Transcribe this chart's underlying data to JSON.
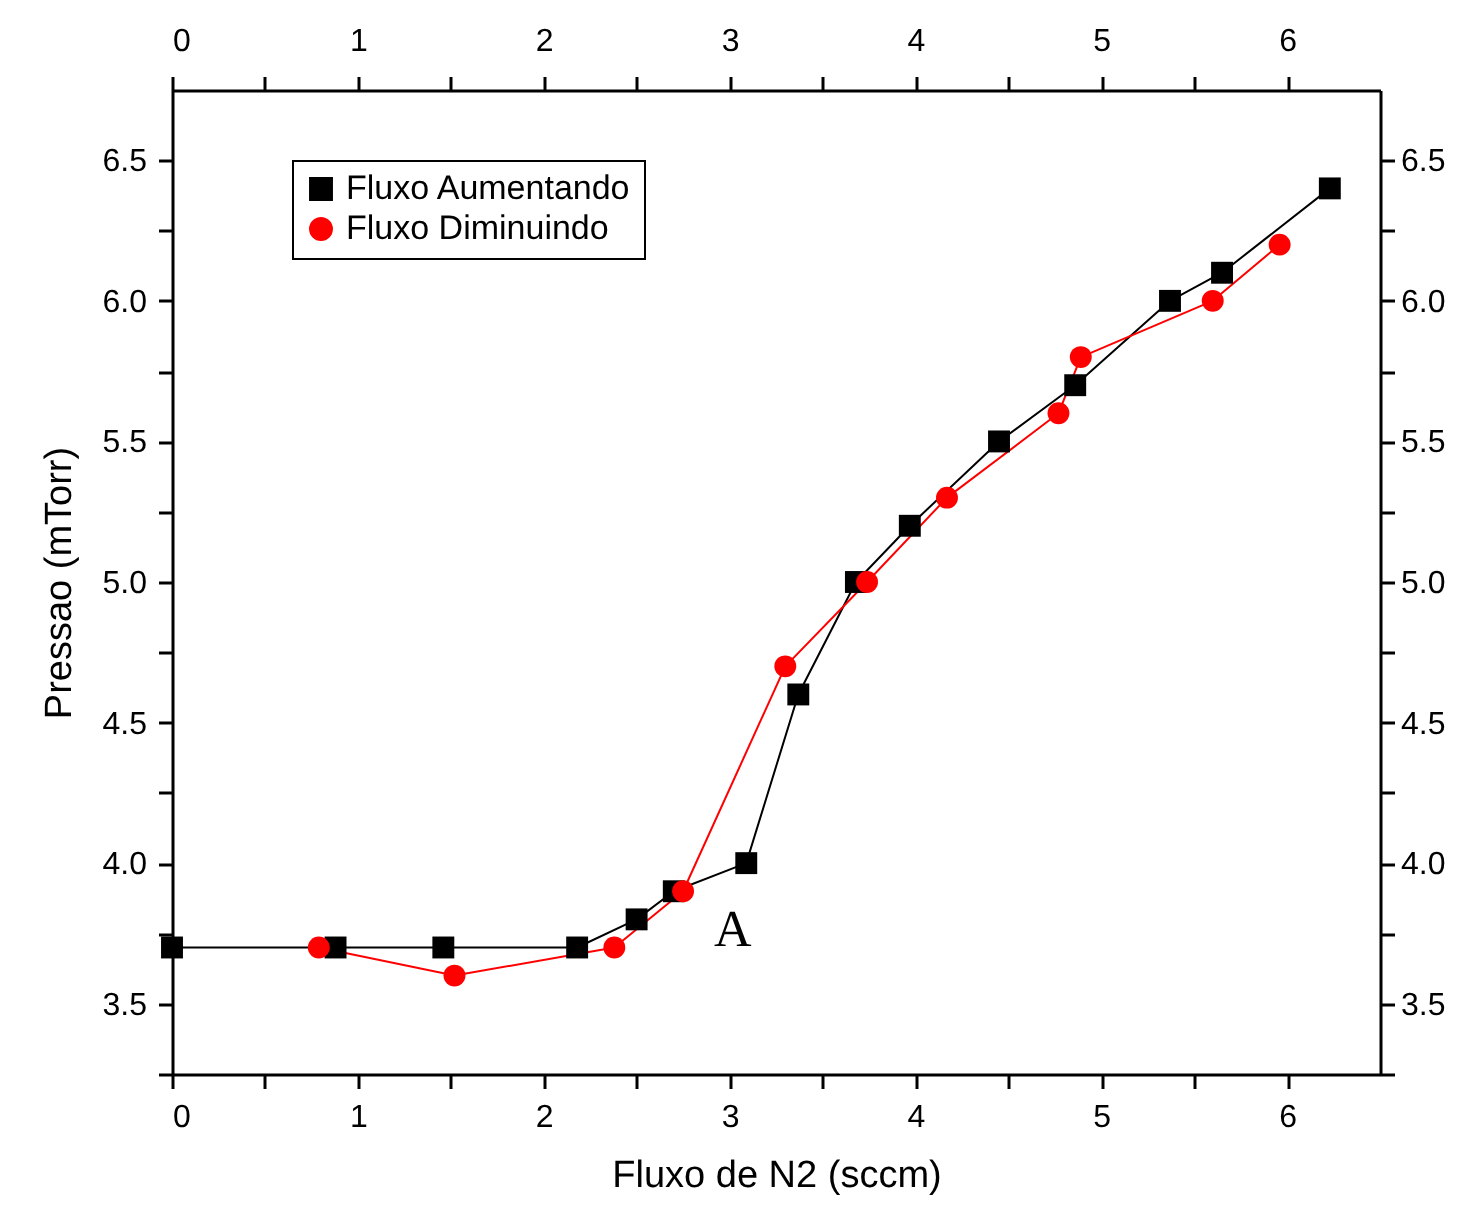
{
  "chart_data": {
    "type": "line",
    "xlabel": "Fluxo de N2 (sccm)",
    "ylabel": "Pressao (mTorr)",
    "xlim": [
      0,
      6.5
    ],
    "xticks": [
      0,
      {
        "value": 0.5,
        "label": null
      },
      1,
      {
        "value": 1.5,
        "label": null
      },
      2,
      {
        "value": 2.5,
        "label": null
      },
      3,
      {
        "value": 3.5,
        "label": null
      },
      4,
      {
        "value": 4.5,
        "label": null
      },
      5,
      {
        "value": 5.5,
        "label": null
      },
      6
    ],
    "x2lim": [
      0,
      6.5
    ],
    "x2ticks": [
      0,
      {
        "value": 0.5,
        "label": null
      },
      1,
      {
        "value": 1.5,
        "label": null
      },
      2,
      {
        "value": 2.5,
        "label": null
      },
      3,
      {
        "value": 3.5,
        "label": null
      },
      4,
      {
        "value": 4.5,
        "label": null
      },
      5,
      {
        "value": 5.5,
        "label": null
      },
      6
    ],
    "ylim": [
      3.25,
      6.75
    ],
    "yticks": [
      {
        "value": 3.25,
        "label": null
      },
      3.5,
      {
        "value": 3.75,
        "label": null
      },
      {
        "value": 4,
        "label": "4.0"
      },
      {
        "value": 4.25,
        "label": null
      },
      4.5,
      {
        "value": 4.75,
        "label": null
      },
      {
        "value": 5,
        "label": "5.0"
      },
      {
        "value": 5.25,
        "label": null
      },
      5.5,
      {
        "value": 5.75,
        "label": null
      },
      {
        "value": 6,
        "label": "6.0"
      },
      {
        "value": 6.25,
        "label": null
      },
      6.5
    ],
    "y2lim": [
      3.25,
      6.75
    ],
    "y2ticks": [
      {
        "value": 3.25,
        "label": null
      },
      3.5,
      {
        "value": 3.75,
        "label": null
      },
      {
        "value": 4,
        "label": "4.0"
      },
      {
        "value": 4.25,
        "label": null
      },
      4.5,
      {
        "value": 4.75,
        "label": null
      },
      {
        "value": 5,
        "label": "5.0"
      },
      {
        "value": 5.25,
        "label": null
      },
      5.5,
      {
        "value": 5.75,
        "label": null
      },
      {
        "value": 6,
        "label": "6.0"
      },
      {
        "value": 6.25,
        "label": null
      },
      6.5
    ],
    "series": [
      {
        "name": "Fluxo Aumentando",
        "color": "#000000",
        "marker": "square",
        "x": [
          0,
          0.88,
          1.46,
          2.18,
          2.5,
          2.7,
          3.09,
          3.37,
          3.68,
          3.97,
          4.45,
          4.86,
          5.37,
          5.65,
          6.23
        ],
        "values": [
          3.7,
          3.7,
          3.7,
          3.7,
          3.8,
          3.9,
          4.0,
          4.6,
          5.0,
          5.2,
          5.5,
          5.7,
          6.0,
          6.1,
          6.4
        ]
      },
      {
        "name": "Fluxo Diminuindo",
        "color": "#ff0000",
        "marker": "circle",
        "x": [
          0.79,
          1.52,
          2.38,
          2.75,
          3.3,
          3.74,
          4.17,
          4.77,
          4.89,
          5.6,
          5.96
        ],
        "values": [
          3.7,
          3.6,
          3.7,
          3.9,
          4.7,
          5.0,
          5.3,
          5.6,
          5.8,
          6.0,
          6.2
        ]
      }
    ],
    "annotations": [
      "A"
    ],
    "legend": "top left",
    "grid": false,
    "line_style": "solid"
  }
}
